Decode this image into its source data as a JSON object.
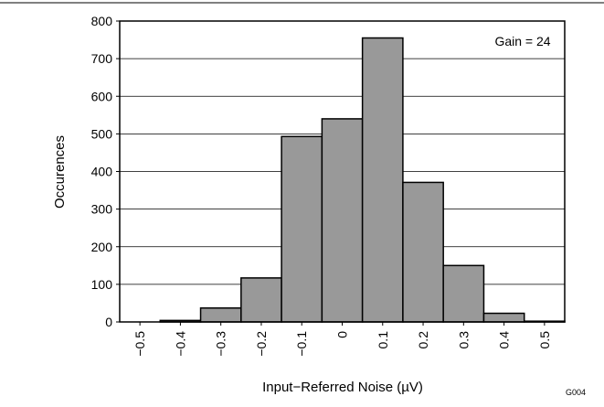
{
  "chart_data": {
    "type": "bar",
    "categories": [
      "−0.5",
      "−0.4",
      "−0.3",
      "−0.2",
      "−0.1",
      "0",
      "0.1",
      "0.2",
      "0.3",
      "0.4",
      "0.5"
    ],
    "values": [
      0,
      4,
      37,
      117,
      493,
      540,
      755,
      371,
      150,
      23,
      2
    ],
    "xlabel": "Input−Referred Noise  (µV)",
    "ylabel": "Occurences",
    "ylim": [
      0,
      800
    ],
    "yticks": [
      0,
      100,
      200,
      300,
      400,
      500,
      600,
      700,
      800
    ],
    "grid": true,
    "annotation": "Gain = 24",
    "figure_code": "G004",
    "bar_color": "#999999",
    "edge_color": "#000000"
  }
}
